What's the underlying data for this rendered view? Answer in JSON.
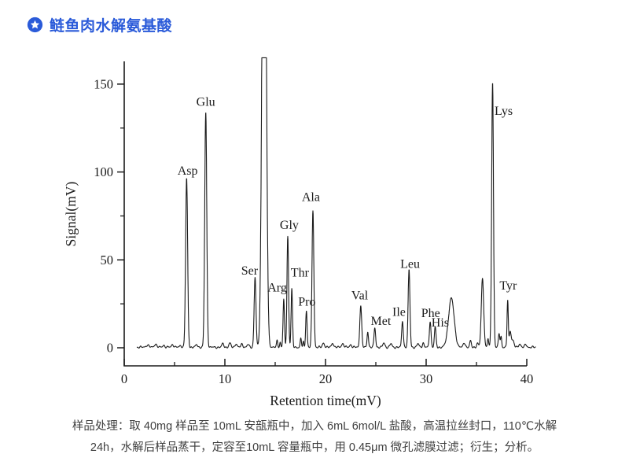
{
  "header": {
    "title": "鲢鱼肉水解氨基酸",
    "accent_color": "#2B5BD9",
    "icon": "star-badge-icon"
  },
  "caption": {
    "line1": "样品处理：取 40mg 样品至 10mL 安瓿瓶中，加入 6mL 6mol/L 盐酸，高温拉丝封口，110℃水解",
    "line2": "24h，水解后样品蒸干，定容至10mL 容量瓶中，用 0.45μm 微孔滤膜过滤；衍生；分析。"
  },
  "chart_data": {
    "type": "line",
    "title": "",
    "xlabel": "Retention time(mV)",
    "ylabel": "Signal(mV)",
    "xlim": [
      0,
      40
    ],
    "ylim": [
      -10,
      162
    ],
    "x_ticks": [
      0,
      10,
      20,
      30,
      40
    ],
    "x_minor_ticks": [
      5,
      15,
      25,
      35
    ],
    "y_ticks": [
      0,
      50,
      100,
      150
    ],
    "y_minor_ticks": [
      25,
      75,
      125
    ],
    "grid": false,
    "trace_color": "#1a1a1a",
    "axis_color": "#1a1a1a",
    "clip_mv": 165,
    "peaks": [
      {
        "label": "Asp",
        "t": 6.2,
        "mv": 96,
        "sigma": 0.1
      },
      {
        "label": "Glu",
        "t": 8.1,
        "mv": 134,
        "sigma": 0.1
      },
      {
        "label": "Ser",
        "t": 13.0,
        "mv": 40,
        "sigma": 0.09
      },
      {
        "label": "",
        "t": 13.9,
        "mv": 400,
        "sigma": 0.18,
        "offscale": true
      },
      {
        "label": "Arg",
        "t": 15.85,
        "mv": 27,
        "sigma": 0.07
      },
      {
        "label": "Gly",
        "t": 16.25,
        "mv": 63,
        "sigma": 0.08
      },
      {
        "label": "Thr",
        "t": 16.65,
        "mv": 33,
        "sigma": 0.07
      },
      {
        "label": "Pro",
        "t": 18.1,
        "mv": 21,
        "sigma": 0.07
      },
      {
        "label": "Ala",
        "t": 18.75,
        "mv": 78,
        "sigma": 0.09
      },
      {
        "label": "Val",
        "t": 23.5,
        "mv": 24,
        "sigma": 0.09
      },
      {
        "label": "",
        "t": 24.2,
        "mv": 9,
        "sigma": 0.07
      },
      {
        "label": "Met",
        "t": 24.9,
        "mv": 11,
        "sigma": 0.08
      },
      {
        "label": "Ile",
        "t": 27.65,
        "mv": 15,
        "sigma": 0.08
      },
      {
        "label": "Leu",
        "t": 28.3,
        "mv": 44,
        "sigma": 0.09
      },
      {
        "label": "Phe",
        "t": 30.4,
        "mv": 15,
        "sigma": 0.08
      },
      {
        "label": "His",
        "t": 30.9,
        "mv": 11.5,
        "sigma": 0.08
      },
      {
        "label": "",
        "t": 32.5,
        "mv": 28,
        "sigma": 0.28
      },
      {
        "label": "",
        "t": 35.6,
        "mv": 39,
        "sigma": 0.12
      },
      {
        "label": "",
        "t": 36.15,
        "mv": 5,
        "sigma": 0.06
      },
      {
        "label": "Lys",
        "t": 36.6,
        "mv": 151,
        "sigma": 0.09
      },
      {
        "label": "",
        "t": 37.25,
        "mv": 8,
        "sigma": 0.07
      },
      {
        "label": "",
        "t": 37.45,
        "mv": 6,
        "sigma": 0.06
      },
      {
        "label": "Tyr",
        "t": 38.1,
        "mv": 27,
        "sigma": 0.06
      },
      {
        "label": "",
        "t": 38.35,
        "mv": 9,
        "sigma": 0.09
      },
      {
        "label": "",
        "t": 38.6,
        "mv": 4,
        "sigma": 0.12
      }
    ],
    "baseline_bumps": [
      [
        2.3,
        1.2,
        0.15
      ],
      [
        3.1,
        1.8,
        0.12
      ],
      [
        3.9,
        1.2,
        0.1
      ],
      [
        4.8,
        1.5,
        0.12
      ],
      [
        5.6,
        1.0,
        0.1
      ],
      [
        7.2,
        1.5,
        0.1
      ],
      [
        9.8,
        2.0,
        0.1
      ],
      [
        10.5,
        2.2,
        0.1
      ],
      [
        11.1,
        2.0,
        0.1
      ],
      [
        11.7,
        1.8,
        0.1
      ],
      [
        12.3,
        1.5,
        0.1
      ],
      [
        15.2,
        4.0,
        0.06
      ],
      [
        15.5,
        3.0,
        0.05
      ],
      [
        17.55,
        5.0,
        0.06
      ],
      [
        17.8,
        3.0,
        0.05
      ],
      [
        19.8,
        2.5,
        0.1
      ],
      [
        20.7,
        2.5,
        0.1
      ],
      [
        21.7,
        2.0,
        0.12
      ],
      [
        22.5,
        1.5,
        0.1
      ],
      [
        25.8,
        2.5,
        0.1
      ],
      [
        26.5,
        2.0,
        0.1
      ],
      [
        29.2,
        2.0,
        0.1
      ],
      [
        29.7,
        2.5,
        0.08
      ],
      [
        33.8,
        2.5,
        0.1
      ],
      [
        34.4,
        3.5,
        0.08
      ],
      [
        35.1,
        2.5,
        0.08
      ],
      [
        39.3,
        2.0,
        0.1
      ],
      [
        39.9,
        1.5,
        0.1
      ]
    ],
    "peak_labels": [
      {
        "text": "Asp",
        "t": 6.3,
        "mv": 101
      },
      {
        "text": "Glu",
        "t": 8.1,
        "mv": 140
      },
      {
        "text": "Ser",
        "t": 12.45,
        "mv": 44
      },
      {
        "text": "Arg",
        "t": 15.2,
        "mv": 34.5
      },
      {
        "text": "Gly",
        "t": 16.4,
        "mv": 70
      },
      {
        "text": "Thr",
        "t": 17.45,
        "mv": 43
      },
      {
        "text": "Pro",
        "t": 18.15,
        "mv": 26.5
      },
      {
        "text": "Ala",
        "t": 18.55,
        "mv": 86
      },
      {
        "text": "Val",
        "t": 23.4,
        "mv": 30
      },
      {
        "text": "Met",
        "t": 25.5,
        "mv": 15.5
      },
      {
        "text": "Ile",
        "t": 27.3,
        "mv": 20.5
      },
      {
        "text": "Leu",
        "t": 28.4,
        "mv": 48
      },
      {
        "text": "Phe",
        "t": 30.45,
        "mv": 20
      },
      {
        "text": "His",
        "t": 31.4,
        "mv": 14.5
      },
      {
        "text": "Lys",
        "t": 37.7,
        "mv": 135
      },
      {
        "text": "Tyr",
        "t": 38.15,
        "mv": 35.5
      }
    ]
  }
}
